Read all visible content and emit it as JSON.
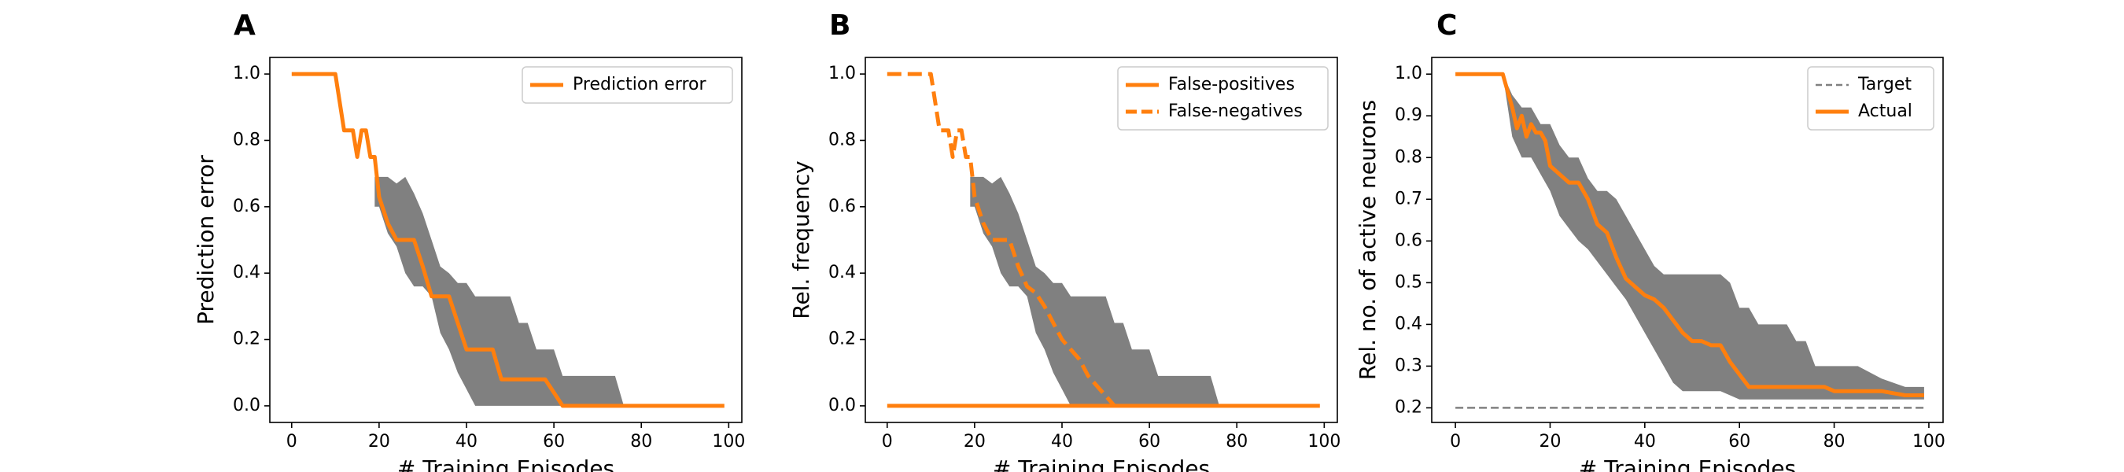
{
  "chart_data": [
    {
      "type": "line",
      "panel_label": "A",
      "xlabel": "# Training Episodes",
      "ylabel": "Prediction error",
      "xlim": [
        -5,
        103
      ],
      "ylim": [
        -0.05,
        1.05
      ],
      "xticks": [
        0,
        20,
        40,
        60,
        80,
        100
      ],
      "yticks": [
        0.0,
        0.2,
        0.4,
        0.6,
        0.8,
        1.0
      ],
      "ytick_labels": [
        "0.0",
        "0.2",
        "0.4",
        "0.6",
        "0.8",
        "1.0"
      ],
      "legend_position": "upper right",
      "band": {
        "color": "#808080",
        "x": [
          19,
          20,
          22,
          24,
          26,
          28,
          30,
          32,
          34,
          36,
          38,
          40,
          42,
          44,
          46,
          48,
          50,
          52,
          54,
          56,
          58,
          60,
          62,
          64,
          66,
          68,
          70,
          72,
          74,
          76
        ],
        "upper": [
          0.69,
          0.69,
          0.69,
          0.67,
          0.69,
          0.64,
          0.58,
          0.5,
          0.42,
          0.4,
          0.37,
          0.37,
          0.33,
          0.33,
          0.33,
          0.33,
          0.33,
          0.25,
          0.25,
          0.17,
          0.17,
          0.17,
          0.09,
          0.09,
          0.09,
          0.09,
          0.09,
          0.09,
          0.09,
          0.0
        ],
        "lower": [
          0.6,
          0.6,
          0.52,
          0.48,
          0.4,
          0.36,
          0.36,
          0.33,
          0.22,
          0.17,
          0.1,
          0.05,
          0.0,
          0.0,
          0.0,
          0.0,
          0.0,
          0.0,
          0.0,
          0.0,
          0.0,
          0.0,
          0.0,
          0.0,
          0.0,
          0.0,
          0.0,
          0.0,
          0.0,
          0.0
        ]
      },
      "series": [
        {
          "name": "Prediction error",
          "color": "#ff7f0e",
          "style": "solid",
          "x": [
            0,
            10,
            12,
            14,
            15,
            16,
            17,
            18,
            19,
            20,
            22,
            24,
            26,
            28,
            30,
            32,
            34,
            36,
            38,
            40,
            42,
            44,
            46,
            48,
            50,
            52,
            54,
            56,
            58,
            60,
            62,
            64,
            66,
            70,
            80,
            90,
            99
          ],
          "y": [
            1.0,
            1.0,
            0.83,
            0.83,
            0.75,
            0.83,
            0.83,
            0.75,
            0.75,
            0.63,
            0.55,
            0.5,
            0.5,
            0.5,
            0.42,
            0.33,
            0.33,
            0.33,
            0.25,
            0.17,
            0.17,
            0.17,
            0.17,
            0.08,
            0.08,
            0.08,
            0.08,
            0.08,
            0.08,
            0.04,
            0.0,
            0.0,
            0.0,
            0.0,
            0.0,
            0.0,
            0.0
          ]
        }
      ]
    },
    {
      "type": "line",
      "panel_label": "B",
      "xlabel": "# Training Episodes",
      "ylabel": "Rel. frequency",
      "xlim": [
        -5,
        103
      ],
      "ylim": [
        -0.05,
        1.05
      ],
      "xticks": [
        0,
        20,
        40,
        60,
        80,
        100
      ],
      "yticks": [
        0.0,
        0.2,
        0.4,
        0.6,
        0.8,
        1.0
      ],
      "ytick_labels": [
        "0.0",
        "0.2",
        "0.4",
        "0.6",
        "0.8",
        "1.0"
      ],
      "legend_position": "upper right",
      "band": {
        "color": "#808080",
        "x": [
          19,
          20,
          22,
          24,
          26,
          28,
          30,
          32,
          34,
          36,
          38,
          40,
          42,
          44,
          46,
          48,
          50,
          52,
          54,
          56,
          58,
          60,
          62,
          64,
          66,
          68,
          70,
          72,
          74,
          76
        ],
        "upper": [
          0.69,
          0.69,
          0.69,
          0.67,
          0.69,
          0.64,
          0.58,
          0.5,
          0.42,
          0.4,
          0.37,
          0.37,
          0.33,
          0.33,
          0.33,
          0.33,
          0.33,
          0.25,
          0.25,
          0.17,
          0.17,
          0.17,
          0.09,
          0.09,
          0.09,
          0.09,
          0.09,
          0.09,
          0.09,
          0.0
        ],
        "lower": [
          0.6,
          0.6,
          0.52,
          0.48,
          0.4,
          0.36,
          0.36,
          0.33,
          0.22,
          0.17,
          0.1,
          0.05,
          0.0,
          0.0,
          0.0,
          0.0,
          0.0,
          0.0,
          0.0,
          0.0,
          0.0,
          0.0,
          0.0,
          0.0,
          0.0,
          0.0,
          0.0,
          0.0,
          0.0,
          0.0
        ]
      },
      "series": [
        {
          "name": "False-positives",
          "color": "#ff7f0e",
          "style": "solid",
          "x": [
            0,
            10,
            20,
            30,
            40,
            50,
            60,
            70,
            80,
            90,
            99
          ],
          "y": [
            0.0,
            0.0,
            0.0,
            0.0,
            0.0,
            0.0,
            0.0,
            0.0,
            0.0,
            0.0,
            0.0
          ]
        },
        {
          "name": "False-negatives",
          "color": "#ff7f0e",
          "style": "dashed",
          "x": [
            0,
            10,
            12,
            14,
            15,
            16,
            17,
            18,
            19,
            20,
            22,
            24,
            26,
            28,
            30,
            32,
            34,
            36,
            38,
            40,
            42,
            44,
            46,
            48,
            50,
            52
          ],
          "y": [
            1.0,
            1.0,
            0.83,
            0.83,
            0.75,
            0.83,
            0.83,
            0.75,
            0.75,
            0.63,
            0.55,
            0.5,
            0.5,
            0.5,
            0.42,
            0.36,
            0.34,
            0.3,
            0.25,
            0.2,
            0.17,
            0.14,
            0.09,
            0.06,
            0.03,
            0.0
          ]
        }
      ]
    },
    {
      "type": "line",
      "panel_label": "C",
      "xlabel": "# Training Episodes",
      "ylabel": "Rel. no. of active neurons",
      "xlim": [
        -5,
        103
      ],
      "ylim": [
        0.165,
        1.04
      ],
      "xticks": [
        0,
        20,
        40,
        60,
        80,
        100
      ],
      "yticks": [
        0.2,
        0.3,
        0.4,
        0.5,
        0.6,
        0.7,
        0.8,
        0.9,
        1.0
      ],
      "ytick_labels": [
        "0.2",
        "0.3",
        "0.4",
        "0.5",
        "0.6",
        "0.7",
        "0.8",
        "0.9",
        "1.0"
      ],
      "legend_position": "upper right",
      "band": {
        "color": "#808080",
        "x": [
          10,
          12,
          14,
          16,
          18,
          20,
          22,
          24,
          26,
          28,
          30,
          32,
          34,
          36,
          38,
          40,
          42,
          44,
          46,
          48,
          50,
          52,
          54,
          56,
          58,
          60,
          62,
          64,
          66,
          68,
          70,
          72,
          74,
          76,
          78,
          80,
          85,
          90,
          95,
          99
        ],
        "upper": [
          1.0,
          0.95,
          0.92,
          0.92,
          0.88,
          0.88,
          0.83,
          0.8,
          0.8,
          0.75,
          0.72,
          0.72,
          0.7,
          0.66,
          0.62,
          0.58,
          0.54,
          0.52,
          0.52,
          0.52,
          0.52,
          0.52,
          0.52,
          0.52,
          0.5,
          0.44,
          0.44,
          0.4,
          0.4,
          0.4,
          0.4,
          0.36,
          0.36,
          0.3,
          0.3,
          0.3,
          0.3,
          0.27,
          0.25,
          0.25
        ],
        "lower": [
          1.0,
          0.85,
          0.8,
          0.8,
          0.76,
          0.72,
          0.66,
          0.63,
          0.6,
          0.58,
          0.55,
          0.52,
          0.49,
          0.46,
          0.42,
          0.38,
          0.34,
          0.3,
          0.26,
          0.24,
          0.24,
          0.24,
          0.24,
          0.24,
          0.23,
          0.22,
          0.22,
          0.22,
          0.22,
          0.22,
          0.22,
          0.22,
          0.22,
          0.22,
          0.22,
          0.22,
          0.22,
          0.22,
          0.22,
          0.22
        ]
      },
      "series": [
        {
          "name": "Target",
          "color": "#808080",
          "style": "dashed-thin",
          "x": [
            0,
            99
          ],
          "y": [
            0.2,
            0.2
          ]
        },
        {
          "name": "Actual",
          "color": "#ff7f0e",
          "style": "solid",
          "x": [
            0,
            10,
            12,
            13,
            14,
            15,
            16,
            17,
            18,
            19,
            20,
            22,
            24,
            26,
            28,
            30,
            32,
            34,
            36,
            38,
            40,
            42,
            44,
            46,
            48,
            50,
            52,
            54,
            56,
            58,
            60,
            62,
            64,
            66,
            68,
            70,
            72,
            74,
            76,
            78,
            80,
            85,
            90,
            95,
            99
          ],
          "y": [
            1.0,
            1.0,
            0.92,
            0.87,
            0.9,
            0.85,
            0.88,
            0.86,
            0.86,
            0.84,
            0.78,
            0.76,
            0.74,
            0.74,
            0.7,
            0.64,
            0.62,
            0.56,
            0.51,
            0.49,
            0.47,
            0.46,
            0.44,
            0.41,
            0.38,
            0.36,
            0.36,
            0.35,
            0.35,
            0.31,
            0.28,
            0.25,
            0.25,
            0.25,
            0.25,
            0.25,
            0.25,
            0.25,
            0.25,
            0.25,
            0.24,
            0.24,
            0.24,
            0.23,
            0.23
          ]
        }
      ]
    }
  ]
}
